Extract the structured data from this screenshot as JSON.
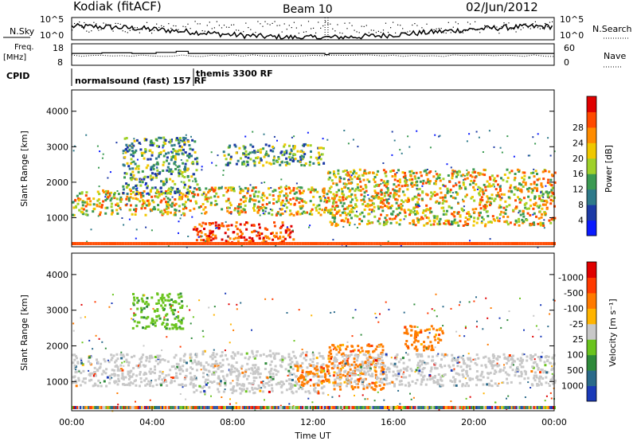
{
  "header": {
    "radar": "Kodiak  (fitACF)",
    "beam": "Beam 10",
    "date": "02/Jun/2012"
  },
  "summary_panel": {
    "nsky_label": "N.Sky",
    "nsky_ticks": [
      "10^5",
      "10^0"
    ],
    "nsearch_label": "N.Search",
    "nsearch_ticks": [
      "10^5",
      "10^0"
    ],
    "freq_label": "Freq.",
    "freq_unit": "[MHz]",
    "freq_ticks": [
      "18",
      "8"
    ],
    "nave_label": "Nave",
    "nave_ticks": [
      "60",
      "0"
    ],
    "cpid_label": "CPID",
    "cpid_entries": [
      "normalsound (fast) 157 RF",
      "themis 3300 RF"
    ]
  },
  "chart_data": [
    {
      "type": "heatmap",
      "title": "",
      "xlabel": "",
      "ylabel": "Slant Range [km]",
      "xlim": [
        0,
        24
      ],
      "ylim": [
        180,
        4600
      ],
      "yticks": [
        "1000",
        "2000",
        "3000",
        "4000"
      ],
      "colorbar": {
        "label": "Power [dB]",
        "ticks": [
          "4",
          "8",
          "12",
          "16",
          "20",
          "24",
          "28"
        ],
        "colors": [
          "#0a1aff",
          "#1c3aa6",
          "#2f7a8a",
          "#3b9a52",
          "#9fd12a",
          "#f0c800",
          "#ff8c00",
          "#ff4a00",
          "#e00000"
        ]
      },
      "features": [
        {
          "time_start": 0.0,
          "time_end": 6.0,
          "range_start": 1100,
          "range_end": 1800,
          "level": "high"
        },
        {
          "time_start": 2.5,
          "time_end": 6.2,
          "range_start": 1700,
          "range_end": 3300,
          "level": "medium"
        },
        {
          "time_start": 6.0,
          "time_end": 12.8,
          "range_start": 1100,
          "range_end": 1900,
          "level": "high"
        },
        {
          "time_start": 6.0,
          "time_end": 11.0,
          "range_start": 300,
          "range_end": 900,
          "level": "very high"
        },
        {
          "time_start": 7.5,
          "time_end": 12.5,
          "range_start": 2500,
          "range_end": 3100,
          "level": "medium"
        },
        {
          "time_start": 12.7,
          "time_end": 24.0,
          "range_start": 800,
          "range_end": 2400,
          "level": "high"
        }
      ]
    },
    {
      "type": "heatmap",
      "title": "",
      "xlabel": "Time UT",
      "ylabel": "Slant Range [km]",
      "xlim": [
        0,
        24
      ],
      "ylim": [
        180,
        4600
      ],
      "xticks": [
        "00:00",
        "04:00",
        "08:00",
        "12:00",
        "16:00",
        "20:00",
        "00:00"
      ],
      "yticks": [
        "1000",
        "2000",
        "3000",
        "4000"
      ],
      "colorbar": {
        "label": "Velocity [m s⁻¹]",
        "ticks": [
          "1000",
          "500",
          "100",
          "25",
          "-25",
          "-100",
          "-500",
          "-1000"
        ],
        "colors": [
          "#1a3ab8",
          "#2a6a8a",
          "#2e8a3a",
          "#6ac41e",
          "#c8c8c8",
          "#ffb400",
          "#ff7a00",
          "#ff3a00",
          "#e00000"
        ]
      },
      "features": [
        {
          "time_start": 0.0,
          "time_end": 6.0,
          "range_start": 900,
          "range_end": 1800,
          "level": "near zero"
        },
        {
          "time_start": 3.0,
          "time_end": 5.5,
          "range_start": 2500,
          "range_end": 3500,
          "level": "positive"
        },
        {
          "time_start": 6.0,
          "time_end": 12.5,
          "range_start": 700,
          "range_end": 1900,
          "level": "near zero"
        },
        {
          "time_start": 11.0,
          "time_end": 12.8,
          "range_start": 900,
          "range_end": 1500,
          "level": "negative"
        },
        {
          "time_start": 12.7,
          "time_end": 15.5,
          "range_start": 800,
          "range_end": 2100,
          "level": "negative"
        },
        {
          "time_start": 16.5,
          "time_end": 18.5,
          "range_start": 1900,
          "range_end": 2600,
          "level": "negative"
        },
        {
          "time_start": 13.0,
          "time_end": 24.0,
          "range_start": 900,
          "range_end": 1800,
          "level": "near zero"
        }
      ]
    }
  ]
}
